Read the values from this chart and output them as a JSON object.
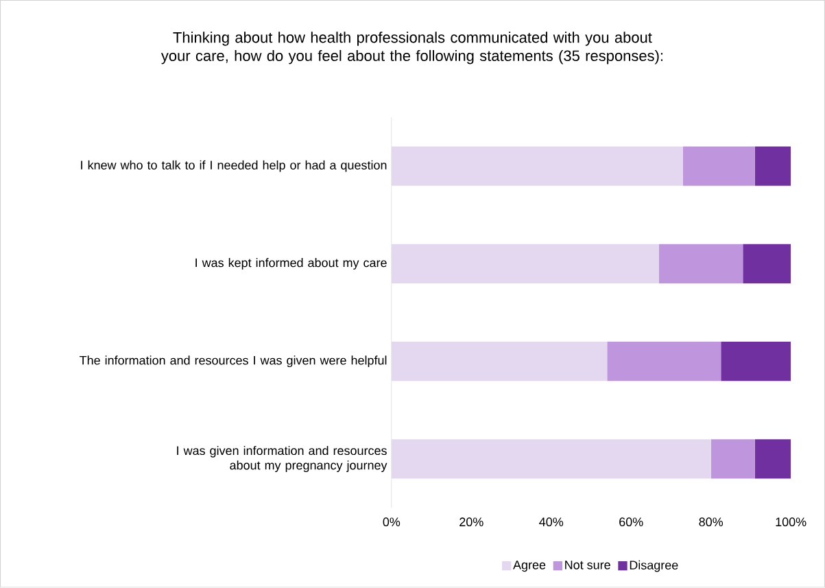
{
  "chart_data": {
    "type": "bar",
    "orientation": "horizontal",
    "stacked": true,
    "title": "Thinking about how health professionals communicated with you about your care, how do you feel about the following statements (35 responses):",
    "categories": [
      "I knew who to talk to if I needed help or had a question",
      "I was kept informed about my care",
      "The information and resources I was given were helpful",
      "I was given information and resources about my pregnancy journey"
    ],
    "series": [
      {
        "name": "Agree",
        "color": "#e4d8f0",
        "values": [
          73,
          67,
          54,
          80
        ]
      },
      {
        "name": "Not sure",
        "color": "#bf96de",
        "values": [
          18,
          21,
          28.5,
          11
        ]
      },
      {
        "name": "Disagree",
        "color": "#7030a0",
        "values": [
          9,
          12,
          17.5,
          9
        ]
      }
    ],
    "xlim": [
      0,
      100
    ],
    "xticks": [
      {
        "value": 0,
        "label": "0%"
      },
      {
        "value": 20,
        "label": "20%"
      },
      {
        "value": 40,
        "label": "40%"
      },
      {
        "value": 60,
        "label": "60%"
      },
      {
        "value": 80,
        "label": "80%"
      },
      {
        "value": 100,
        "label": "100%"
      }
    ],
    "grid": false,
    "legend": "bottom"
  }
}
